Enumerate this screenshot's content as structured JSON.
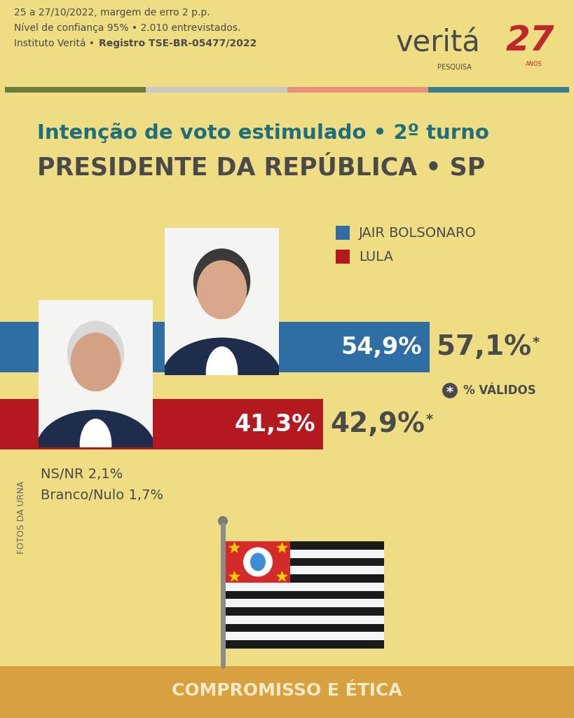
{
  "header": {
    "lines": [
      "25 a 27/10/2022, margem de erro 2 p.p.",
      "Nível de confiança 95% • 2.010 entrevistados."
    ],
    "institute": "Instituto Veritá •",
    "registration": "Registro TSE-BR-05477/2022"
  },
  "logo": {
    "name": "veritá",
    "tagline": "PESQUISA",
    "years": "27",
    "years_label": "ANOS"
  },
  "chart_data": {
    "type": "bar",
    "orientation": "horizontal",
    "title": "Intenção de voto estimulado • 2º turno",
    "subtitle": "PRESIDENTE DA REPÚBLICA • SP",
    "categories": [
      "JAIR BOLSONARO",
      "LULA"
    ],
    "values": [
      54.9,
      41.3
    ],
    "value_labels": [
      "54,9%",
      "41,3%"
    ],
    "colors": [
      "#2f6ea5",
      "#b3191f"
    ],
    "data_labels": true,
    "valid_value_labels": [
      "57,1%",
      "42,9%"
    ],
    "valid_mark": "*",
    "valid_note": "% VÁLIDOS",
    "xlim": [
      0,
      73.3
    ],
    "tick_labels": false,
    "grid": false
  },
  "notes": [
    "NS/NR 2,1%",
    "Branco/Nulo 1,7%"
  ],
  "side_label": "FOTOS DA URNA",
  "footer": "COMPROMISSO E ÉTICA"
}
